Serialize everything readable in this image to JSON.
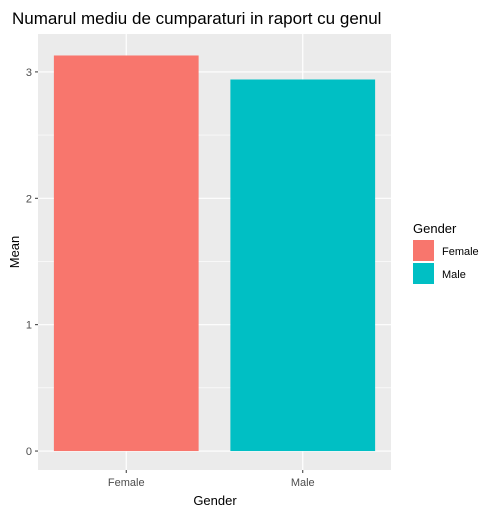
{
  "chart_data": {
    "type": "bar",
    "title": "Numarul mediu de cumparaturi in raport cu genul",
    "xlabel": "Gender",
    "ylabel": "Mean",
    "categories": [
      "Female",
      "Male"
    ],
    "values": [
      3.13,
      2.94
    ],
    "colors": [
      "#F8766D",
      "#00BFC4"
    ],
    "ylim": [
      -0.15,
      3.3
    ],
    "yticks": [
      0,
      1,
      2,
      3
    ],
    "grid": true,
    "panel_background": "#EBEBEB",
    "gridline_color": "#FFFFFF",
    "legend": {
      "title": "Gender",
      "position": "right",
      "entries": [
        {
          "label": "Female",
          "color": "#F8766D"
        },
        {
          "label": "Male",
          "color": "#00BFC4"
        }
      ]
    }
  }
}
